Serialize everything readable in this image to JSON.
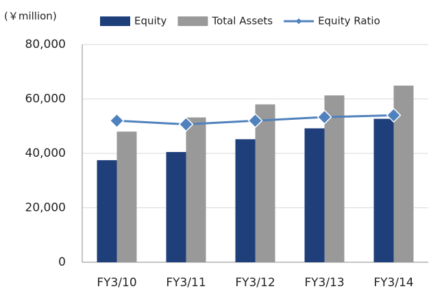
{
  "chart_data": {
    "type": "bar",
    "y_label": "(￥million)",
    "categories": [
      "FY3/10",
      "FY3/11",
      "FY3/12",
      "FY3/13",
      "FY3/14"
    ],
    "series": [
      {
        "name": "Equity",
        "color": "#1f3f7a",
        "values": [
          37500,
          40500,
          45200,
          49200,
          52700
        ]
      },
      {
        "name": "Total Assets",
        "color": "#999999",
        "values": [
          48000,
          53200,
          58000,
          61300,
          64900
        ]
      },
      {
        "name": "Equity Ratio",
        "color": "#4f81bd",
        "type": "line",
        "axis": "y2",
        "values": [
          78,
          76,
          78,
          80,
          81
        ]
      }
    ],
    "ylim": [
      0,
      80000
    ],
    "yticks": [
      0,
      {
        "value": 20000,
        "label": "20,000"
      },
      {
        "value": 40000,
        "label": "40,000"
      },
      {
        "value": 60000,
        "label": "60,000"
      },
      {
        "value": 80000,
        "label": "80,000"
      }
    ],
    "y2lim": [
      0,
      120
    ],
    "grid": true,
    "legend": "top"
  }
}
